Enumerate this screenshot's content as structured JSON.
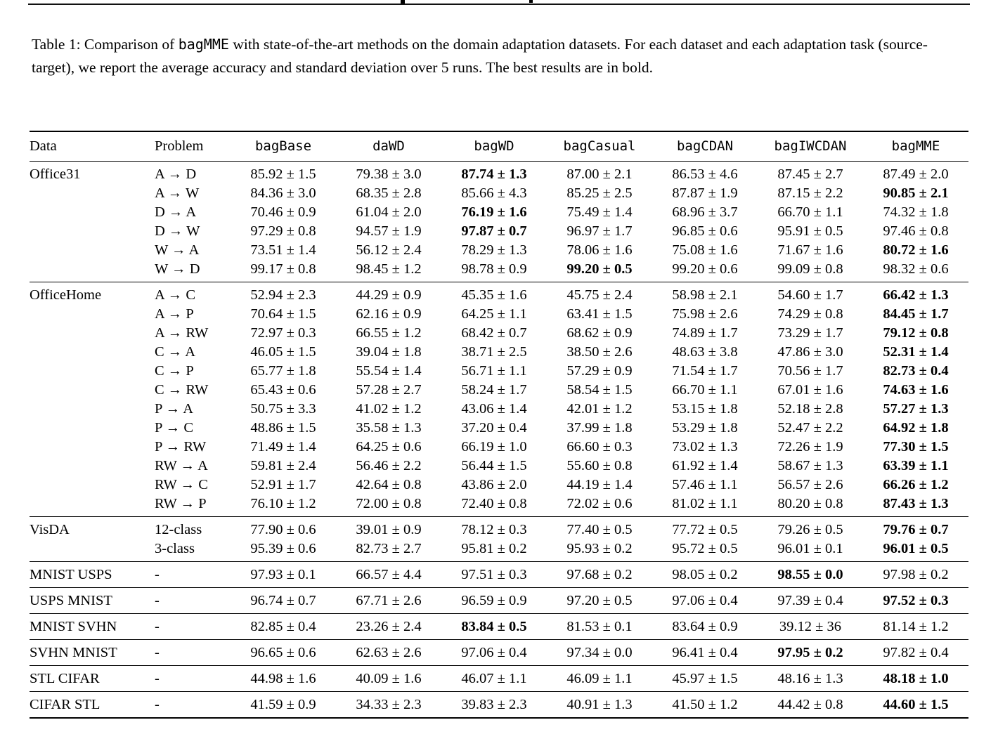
{
  "caption": {
    "prefix": "Table 1: Comparison of ",
    "code": "bagMME",
    "suffix": " with state-of-the-art methods on the domain adaptation datasets. For each dataset and each adaptation task (source-target), we report the average accuracy and standard deviation over 5 runs. The best results are in bold."
  },
  "table": {
    "columns": [
      {
        "label": "Data",
        "mono": false
      },
      {
        "label": "Problem",
        "mono": false
      },
      {
        "label": "bagBase",
        "mono": true
      },
      {
        "label": "daWD",
        "mono": true
      },
      {
        "label": "bagWD",
        "mono": true
      },
      {
        "label": "bagCasual",
        "mono": true
      },
      {
        "label": "bagCDAN",
        "mono": true
      },
      {
        "label": "bagIWCDAN",
        "mono": true
      },
      {
        "label": "bagMME",
        "mono": true
      }
    ],
    "sections": [
      {
        "dataset": "Office31",
        "rows": [
          {
            "problem": "A → D",
            "values": [
              "85.92 ± 1.5",
              "79.38 ± 3.0",
              "87.74 ± 1.3",
              "87.00 ± 2.1",
              "86.53 ± 4.6",
              "87.45 ± 2.7",
              "87.49 ± 2.0"
            ],
            "bold": 2
          },
          {
            "problem": "A → W",
            "values": [
              "84.36 ± 3.0",
              "68.35 ± 2.8",
              "85.66 ± 4.3",
              "85.25 ± 2.5",
              "87.87 ± 1.9",
              "87.15 ± 2.2",
              "90.85 ± 2.1"
            ],
            "bold": 6
          },
          {
            "problem": "D → A",
            "values": [
              "70.46 ± 0.9",
              "61.04 ± 2.0",
              "76.19 ± 1.6",
              "75.49 ± 1.4",
              "68.96 ± 3.7",
              "66.70 ± 1.1",
              "74.32 ± 1.8"
            ],
            "bold": 2
          },
          {
            "problem": "D → W",
            "values": [
              "97.29 ± 0.8",
              "94.57 ± 1.9",
              "97.87 ± 0.7",
              "96.97 ± 1.7",
              "96.85 ± 0.6",
              "95.91 ± 0.5",
              "97.46 ± 0.8"
            ],
            "bold": 2
          },
          {
            "problem": "W → A",
            "values": [
              "73.51 ± 1.4",
              "56.12 ± 2.4",
              "78.29 ± 1.3",
              "78.06 ± 1.6",
              "75.08 ± 1.6",
              "71.67 ± 1.6",
              "80.72 ± 1.6"
            ],
            "bold": 6
          },
          {
            "problem": "W → D",
            "values": [
              "99.17 ± 0.8",
              "98.45 ± 1.2",
              "98.78 ± 0.9",
              "99.20 ± 0.5",
              "99.20 ± 0.6",
              "99.09 ± 0.8",
              "98.32 ± 0.6"
            ],
            "bold": 3
          }
        ]
      },
      {
        "dataset": "OfficeHome",
        "rows": [
          {
            "problem": "A → C",
            "values": [
              "52.94 ± 2.3",
              "44.29 ± 0.9",
              "45.35 ± 1.6",
              "45.75 ± 2.4",
              "58.98 ± 2.1",
              "54.60 ± 1.7",
              "66.42 ± 1.3"
            ],
            "bold": 6
          },
          {
            "problem": "A → P",
            "values": [
              "70.64 ± 1.5",
              "62.16 ± 0.9",
              "64.25 ± 1.1",
              "63.41 ± 1.5",
              "75.98 ± 2.6",
              "74.29 ± 0.8",
              "84.45 ± 1.7"
            ],
            "bold": 6
          },
          {
            "problem": "A → RW",
            "values": [
              "72.97 ± 0.3",
              "66.55 ± 1.2",
              "68.42 ± 0.7",
              "68.62 ± 0.9",
              "74.89 ± 1.7",
              "73.29 ± 1.7",
              "79.12 ± 0.8"
            ],
            "bold": 6
          },
          {
            "problem": "C → A",
            "values": [
              "46.05 ± 1.5",
              "39.04 ± 1.8",
              "38.71 ± 2.5",
              "38.50 ± 2.6",
              "48.63 ± 3.8",
              "47.86 ± 3.0",
              "52.31 ± 1.4"
            ],
            "bold": 6
          },
          {
            "problem": "C → P",
            "values": [
              "65.77 ± 1.8",
              "55.54 ± 1.4",
              "56.71 ± 1.1",
              "57.29 ± 0.9",
              "71.54 ± 1.7",
              "70.56 ± 1.7",
              "82.73 ± 0.4"
            ],
            "bold": 6
          },
          {
            "problem": "C → RW",
            "values": [
              "65.43 ± 0.6",
              "57.28 ± 2.7",
              "58.24 ± 1.7",
              "58.54 ± 1.5",
              "66.70 ± 1.1",
              "67.01 ± 1.6",
              "74.63 ± 1.6"
            ],
            "bold": 6
          },
          {
            "problem": "P → A",
            "values": [
              "50.75 ± 3.3",
              "41.02 ± 1.2",
              "43.06 ± 1.4",
              "42.01 ± 1.2",
              "53.15 ± 1.8",
              "52.18 ± 2.8",
              "57.27 ± 1.3"
            ],
            "bold": 6
          },
          {
            "problem": "P → C",
            "values": [
              "48.86 ± 1.5",
              "35.58 ± 1.3",
              "37.20 ± 0.4",
              "37.99 ± 1.8",
              "53.29 ± 1.8",
              "52.47 ± 2.2",
              "64.92 ± 1.8"
            ],
            "bold": 6
          },
          {
            "problem": "P → RW",
            "values": [
              "71.49 ± 1.4",
              "64.25 ± 0.6",
              "66.19 ± 1.0",
              "66.60 ± 0.3",
              "73.02 ± 1.3",
              "72.26 ± 1.9",
              "77.30 ± 1.5"
            ],
            "bold": 6
          },
          {
            "problem": "RW → A",
            "values": [
              "59.81 ± 2.4",
              "56.46 ± 2.2",
              "56.44 ± 1.5",
              "55.60 ± 0.8",
              "61.92 ± 1.4",
              "58.67 ± 1.3",
              "63.39 ± 1.1"
            ],
            "bold": 6
          },
          {
            "problem": "RW → C",
            "values": [
              "52.91 ± 1.7",
              "42.64 ± 0.8",
              "43.86 ± 2.0",
              "44.19 ± 1.4",
              "57.46 ± 1.1",
              "56.57 ± 2.6",
              "66.26 ± 1.2"
            ],
            "bold": 6
          },
          {
            "problem": "RW → P",
            "values": [
              "76.10 ± 1.2",
              "72.00 ± 0.8",
              "72.40 ± 0.8",
              "72.02 ± 0.6",
              "81.02 ± 1.1",
              "80.20 ± 0.8",
              "87.43 ± 1.3"
            ],
            "bold": 6
          }
        ]
      },
      {
        "dataset": "VisDA",
        "rows": [
          {
            "problem": "12-class",
            "values": [
              "77.90 ± 0.6",
              "39.01 ± 0.9",
              "78.12 ± 0.3",
              "77.40 ± 0.5",
              "77.72 ± 0.5",
              "79.26 ± 0.5",
              "79.76 ± 0.7"
            ],
            "bold": 6
          },
          {
            "problem": "3-class",
            "values": [
              "95.39 ± 0.6",
              "82.73 ± 2.7",
              "95.81 ± 0.2",
              "95.93 ± 0.2",
              "95.72 ± 0.5",
              "96.01 ± 0.1",
              "96.01 ± 0.5"
            ],
            "bold": 6
          }
        ]
      },
      {
        "dataset": "MNIST USPS",
        "rows": [
          {
            "problem": "-",
            "values": [
              "97.93 ± 0.1",
              "66.57 ± 4.4",
              "97.51 ± 0.3",
              "97.68 ± 0.2",
              "98.05 ± 0.2",
              "98.55 ± 0.0",
              "97.98 ± 0.2"
            ],
            "bold": 5
          }
        ]
      },
      {
        "dataset": "USPS MNIST",
        "rows": [
          {
            "problem": "-",
            "values": [
              "96.74 ± 0.7",
              "67.71 ± 2.6",
              "96.59 ± 0.9",
              "97.20 ± 0.5",
              "97.06 ± 0.4",
              "97.39 ± 0.4",
              "97.52 ± 0.3"
            ],
            "bold": 6
          }
        ]
      },
      {
        "dataset": "MNIST SVHN",
        "rows": [
          {
            "problem": "-",
            "values": [
              "82.85 ± 0.4",
              "23.26 ± 2.4",
              "83.84 ± 0.5",
              "81.53 ± 0.1",
              "83.64 ± 0.9",
              "39.12 ± 36",
              "81.14 ± 1.2"
            ],
            "bold": 2
          }
        ]
      },
      {
        "dataset": "SVHN MNIST",
        "rows": [
          {
            "problem": "-",
            "values": [
              "96.65 ± 0.6",
              "62.63 ± 2.6",
              "97.06 ± 0.4",
              "97.34 ± 0.0",
              "96.41 ± 0.4",
              "97.95 ± 0.2",
              "97.82 ± 0.4"
            ],
            "bold": 5
          }
        ]
      },
      {
        "dataset": "STL CIFAR",
        "rows": [
          {
            "problem": "-",
            "values": [
              "44.98 ± 1.6",
              "40.09 ± 1.6",
              "46.07 ± 1.1",
              "46.09 ± 1.1",
              "45.97 ± 1.5",
              "48.16 ± 1.3",
              "48.18 ± 1.0"
            ],
            "bold": 6
          }
        ]
      },
      {
        "dataset": "CIFAR STL",
        "rows": [
          {
            "problem": "-",
            "values": [
              "41.59 ± 0.9",
              "34.33 ± 2.3",
              "39.83 ± 2.3",
              "40.91 ± 1.3",
              "41.50 ± 1.2",
              "44.42 ± 0.8",
              "44.60 ± 1.5"
            ],
            "bold": 6
          }
        ]
      }
    ]
  }
}
